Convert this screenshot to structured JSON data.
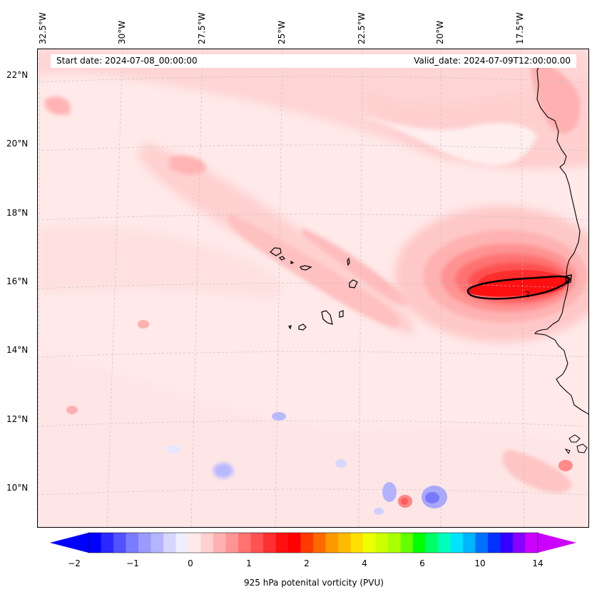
{
  "header": {
    "start_date": "Start date: 2024-07-08_00:00:00",
    "valid_date": "Valid_date: 2024-07-09T12:00:00.00"
  },
  "longitudes": [
    "32.5°W",
    "30°W",
    "27.5°W",
    "25°W",
    "22.5°W",
    "20°W",
    "17.5°W"
  ],
  "latitudes": [
    "22°N",
    "20°N",
    "18°N",
    "16°N",
    "14°N",
    "12°N",
    "10°N"
  ],
  "contour_label": "2",
  "colorbar": {
    "title": "925 hPa potenital vorticity (PVU)",
    "ticks": [
      "−2",
      "−1",
      "0",
      "1",
      "2",
      "4",
      "6",
      "10",
      "14"
    ],
    "colors": [
      "#0000ff",
      "#2929ff",
      "#5252ff",
      "#7b7bff",
      "#9a9aff",
      "#b4b4ff",
      "#d6d6ff",
      "#efefff",
      "#ffe9e9",
      "#ffd0d0",
      "#ffb1b1",
      "#ff9494",
      "#ff7373",
      "#ff5353",
      "#ff3030",
      "#ff1010",
      "#ff0000",
      "#ff3a00",
      "#ff6a00",
      "#ff9900",
      "#ffbb00",
      "#ffe000",
      "#eeff00",
      "#ccff00",
      "#aaff00",
      "#66ff00",
      "#00ff00",
      "#00ff66",
      "#00ffbb",
      "#00e5ff",
      "#00b5ff",
      "#0070ff",
      "#0033ff",
      "#3300ff",
      "#8800ff",
      "#cc00ff"
    ],
    "under_color": "#0000ff",
    "over_color": "#cc00ff"
  }
}
